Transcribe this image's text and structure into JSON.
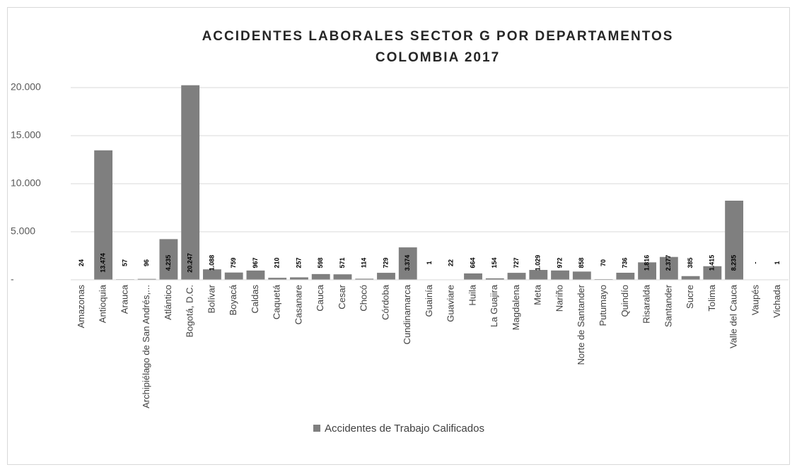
{
  "chart_data": {
    "type": "bar",
    "title": [
      "ACCIDENTES LABORALES SECTOR G POR DEPARTAMENTOS",
      "COLOMBIA 2017"
    ],
    "categories": [
      "Amazonas",
      "Antioquia",
      "Arauca",
      "Archipiélago de San Andrés,...",
      "Atlántico",
      "Bogotá, D.C.",
      "Bolívar",
      "Boyacá",
      "Caldas",
      "Caquetá",
      "Casanare",
      "Cauca",
      "Cesar",
      "Chocó",
      "Córdoba",
      "Cundinamarca",
      "Guainía",
      "Guaviare",
      "Huila",
      "La Guajira",
      "Magdalena",
      "Meta",
      "Nariño",
      "Norte de Santander",
      "Putumayo",
      "Quindío",
      "Risaralda",
      "Santander",
      "Sucre",
      "Tolima",
      "Valle del Cauca",
      "Vaupés",
      "Vichada"
    ],
    "series": [
      {
        "name": "Accidentes de Trabajo Calificados",
        "color": "#7f7f7f",
        "values": [
          24,
          13474,
          57,
          96,
          4235,
          20247,
          1088,
          759,
          967,
          210,
          257,
          598,
          571,
          114,
          729,
          3374,
          1,
          22,
          664,
          154,
          727,
          1029,
          972,
          858,
          70,
          736,
          1816,
          2377,
          385,
          1415,
          8235,
          0,
          1
        ],
        "value_labels": [
          "24",
          "13.474",
          "57",
          "96",
          "4.235",
          "20.247",
          "1.088",
          "759",
          "967",
          "210",
          "257",
          "598",
          "571",
          "114",
          "729",
          "3.374",
          "1",
          "22",
          "664",
          "154",
          "727",
          "1.029",
          "972",
          "858",
          "70",
          "736",
          "1.816",
          "2.377",
          "385",
          "1.415",
          "8.235",
          "-",
          "1"
        ]
      }
    ],
    "ylim": [
      0,
      20000
    ],
    "yticks": [
      {
        "value": 0,
        "label": "-"
      },
      {
        "value": 5000,
        "label": "5.000"
      },
      {
        "value": 10000,
        "label": "10.000"
      },
      {
        "value": 15000,
        "label": "15.000"
      },
      {
        "value": 20000,
        "label": "20.000"
      }
    ],
    "grid": true,
    "legend": "bottom"
  }
}
